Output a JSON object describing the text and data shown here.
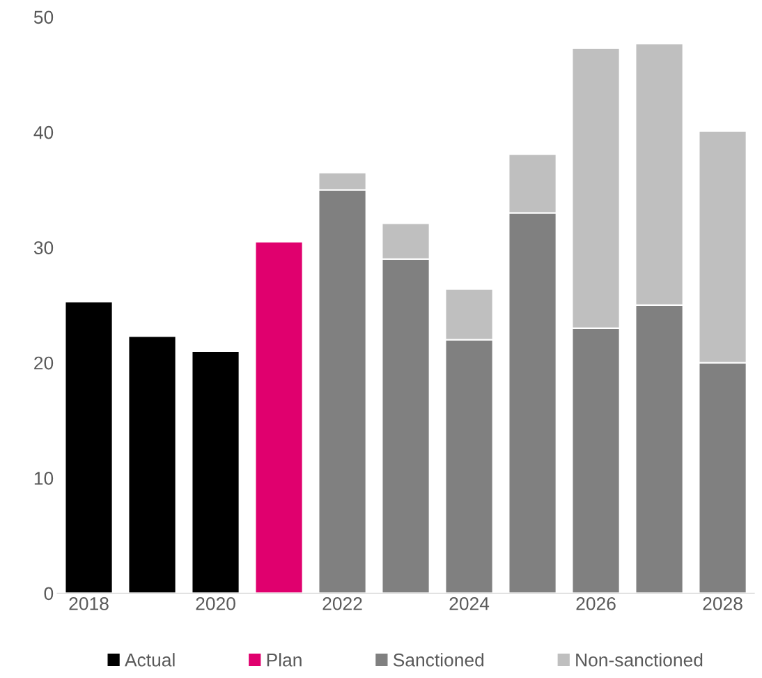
{
  "chart_data": {
    "type": "bar",
    "stacked": true,
    "categories": [
      "2018",
      null,
      "2020",
      null,
      "2022",
      null,
      "2024",
      null,
      "2026",
      null,
      "2028"
    ],
    "series": [
      {
        "name": "Actual",
        "color": "#000000",
        "values": [
          25.3,
          22.3,
          21.0,
          null,
          null,
          null,
          null,
          null,
          null,
          null,
          null
        ]
      },
      {
        "name": "Plan",
        "color": "#e0006e",
        "values": [
          null,
          null,
          null,
          30.5,
          null,
          null,
          null,
          null,
          null,
          null,
          null
        ]
      },
      {
        "name": "Sanctioned",
        "color": "#808080",
        "values": [
          null,
          null,
          null,
          null,
          35.0,
          29.0,
          22.0,
          33.0,
          23.0,
          25.0,
          20.0
        ]
      },
      {
        "name": "Non-sanctioned",
        "color": "#bfbfbf",
        "values": [
          null,
          null,
          null,
          null,
          1.5,
          3.1,
          4.4,
          5.1,
          24.3,
          22.7,
          20.1
        ]
      }
    ],
    "ylim": [
      0,
      50
    ],
    "yticks": [
      0,
      10,
      20,
      30,
      40,
      50
    ],
    "grid": false,
    "legend": "bottom"
  }
}
